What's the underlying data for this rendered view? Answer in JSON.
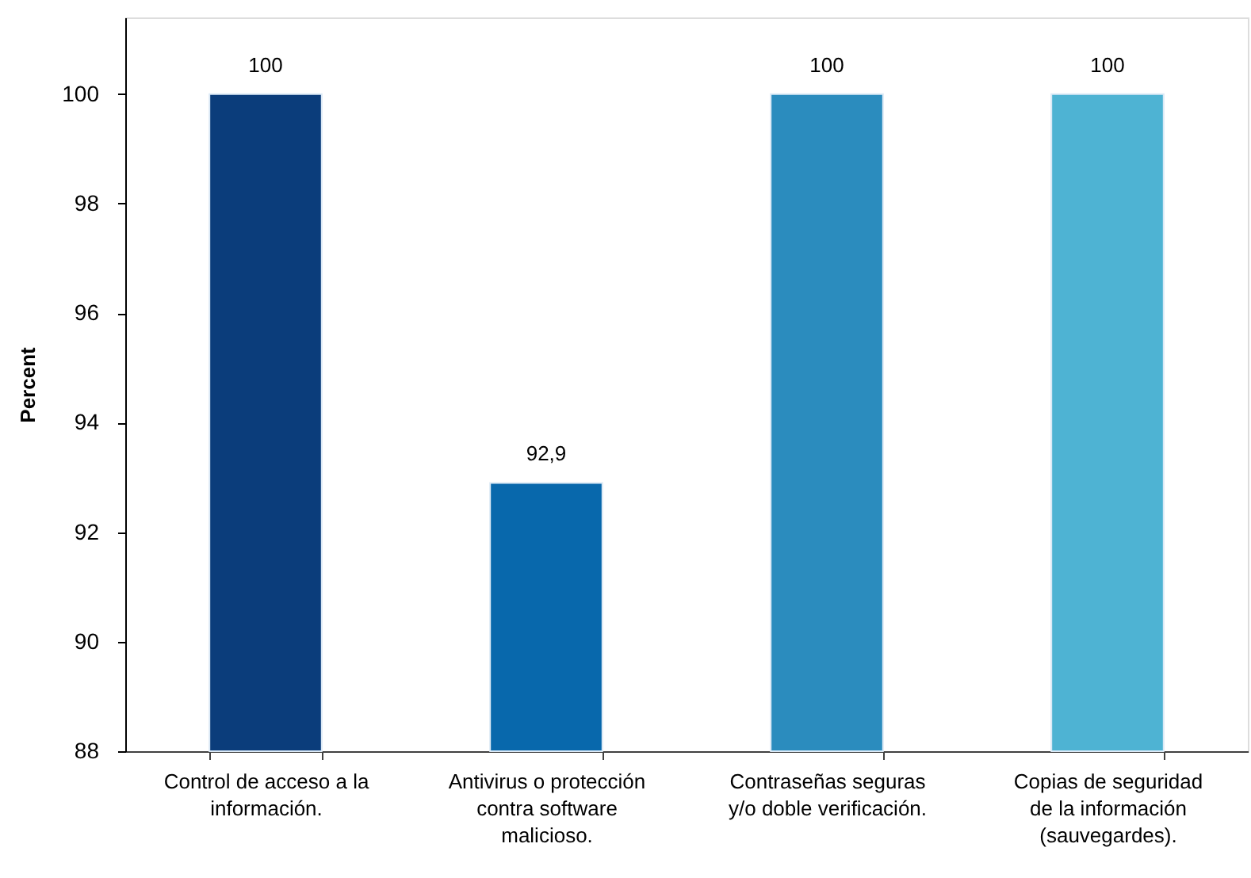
{
  "chart_data": {
    "type": "bar",
    "ylabel": "Percent",
    "categories": [
      "Control de acceso a la información.",
      "Antivirus o protección contra software malicioso.",
      "Contraseñas seguras y/o doble verificación.",
      "Copias de seguridad de la información (sauvegardes)."
    ],
    "values": [
      100,
      92.9,
      100,
      100
    ],
    "colors": [
      "#0b3d7b",
      "#0868ac",
      "#2b8cbe",
      "#4eb3d3"
    ],
    "value_labels": [
      "100",
      "92,9",
      "100",
      "100"
    ],
    "ylim": [
      88,
      101.4
    ],
    "yticks": [
      88,
      90,
      92,
      94,
      96,
      98,
      100
    ]
  }
}
